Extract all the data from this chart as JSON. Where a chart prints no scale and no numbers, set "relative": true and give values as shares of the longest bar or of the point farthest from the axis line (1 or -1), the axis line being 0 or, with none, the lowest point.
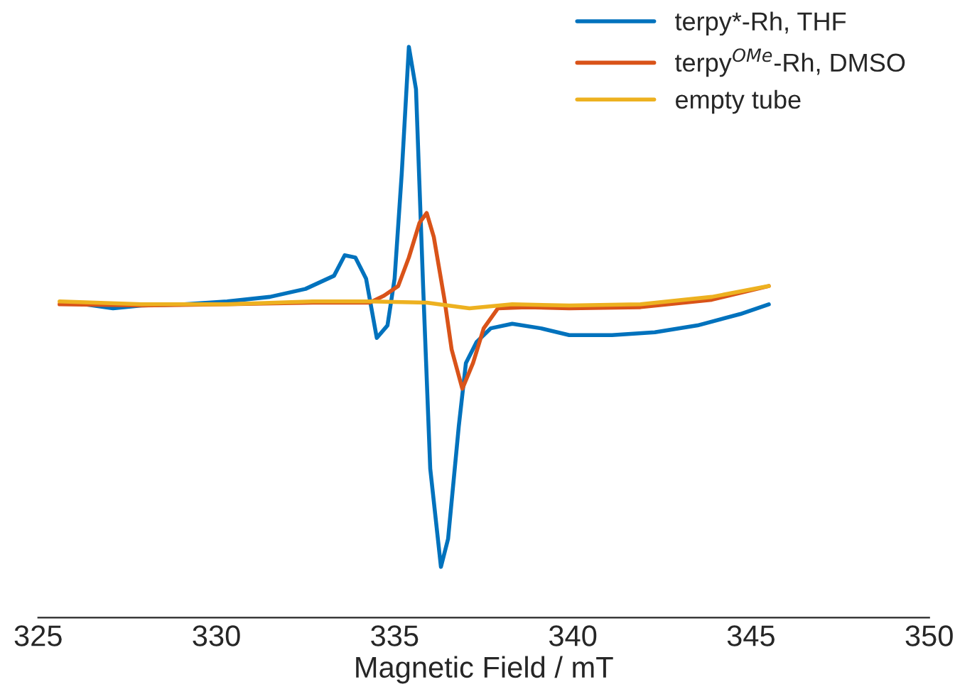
{
  "chart_data": {
    "type": "line",
    "relative": true,
    "xlabel": "Magnetic Field / mT",
    "xlim": [
      325,
      350
    ],
    "xticks": [
      325,
      330,
      335,
      340,
      345,
      350
    ],
    "legend": "top right",
    "grid": false,
    "line_style": "solid",
    "tick_labels": "x",
    "series": [
      {
        "name": "terpy*-Rh, THF",
        "color": "#0072bd",
        "x": [
          326.3,
          327.1,
          327.9,
          329.1,
          330.3,
          331.5,
          332.5,
          333.3,
          333.6,
          333.9,
          334.2,
          334.5,
          334.8,
          335.0,
          335.2,
          335.4,
          335.6,
          335.8,
          336.0,
          336.3,
          336.5,
          336.8,
          337.0,
          337.3,
          337.7,
          338.3,
          339.1,
          339.9,
          341.1,
          342.3,
          343.5,
          344.7,
          345.5
        ],
        "values": [
          0.549,
          0.542,
          0.547,
          0.549,
          0.554,
          0.562,
          0.576,
          0.599,
          0.635,
          0.631,
          0.594,
          0.49,
          0.512,
          0.594,
          0.778,
          1.0,
          0.926,
          0.581,
          0.261,
          0.089,
          0.138,
          0.335,
          0.446,
          0.483,
          0.507,
          0.515,
          0.507,
          0.495,
          0.495,
          0.5,
          0.512,
          0.532,
          0.549
        ]
      },
      {
        "name": "terpy$^{OMe}$-Rh, DMSO",
        "color": "#d95319",
        "x": [
          325.6,
          327.9,
          330.3,
          332.7,
          334.3,
          334.7,
          335.1,
          335.4,
          335.7,
          335.9,
          336.1,
          336.4,
          336.6,
          336.9,
          337.2,
          337.5,
          337.9,
          338.7,
          339.9,
          341.9,
          343.9,
          345.5
        ],
        "values": [
          0.549,
          0.547,
          0.549,
          0.552,
          0.552,
          0.564,
          0.581,
          0.631,
          0.692,
          0.709,
          0.667,
          0.557,
          0.47,
          0.401,
          0.446,
          0.507,
          0.542,
          0.544,
          0.542,
          0.544,
          0.557,
          0.581
        ]
      },
      {
        "name": "empty tube",
        "color": "#edb120",
        "x": [
          325.6,
          327.9,
          330.3,
          332.7,
          334.3,
          335.9,
          337.1,
          338.3,
          339.9,
          341.9,
          343.9,
          345.5
        ],
        "values": [
          0.554,
          0.549,
          0.549,
          0.554,
          0.554,
          0.552,
          0.542,
          0.549,
          0.547,
          0.549,
          0.562,
          0.581
        ]
      }
    ]
  }
}
